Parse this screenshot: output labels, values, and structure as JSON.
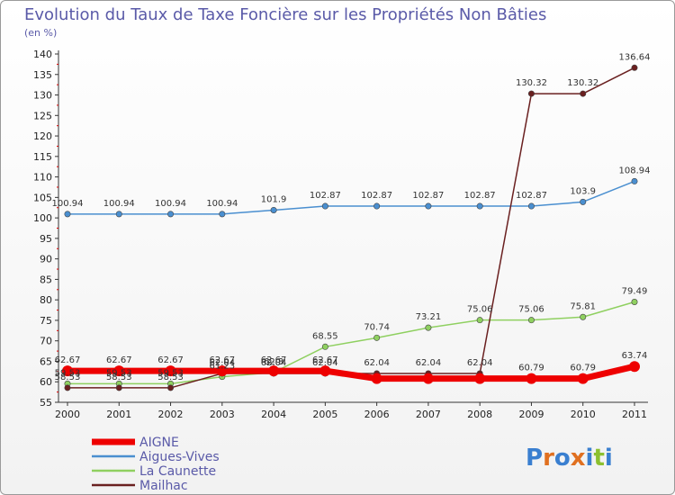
{
  "chart_data": {
    "type": "line",
    "title": "Evolution du Taux de Taxe Foncière sur les Propriétés Non Bâties",
    "subtitle": "(en %)",
    "categories": [
      "2000",
      "2001",
      "2002",
      "2003",
      "2004",
      "2005",
      "2006",
      "2007",
      "2008",
      "2009",
      "2010",
      "2011"
    ],
    "ylim": [
      55,
      140
    ],
    "yticks": [
      55,
      60,
      65,
      70,
      75,
      80,
      85,
      90,
      95,
      100,
      105,
      110,
      115,
      120,
      125,
      130,
      135,
      140
    ],
    "series": [
      {
        "name": "AIGNE",
        "color": "#ee0000",
        "values": [
          62.67,
          62.67,
          62.67,
          62.67,
          62.67,
          62.67,
          60.79,
          60.79,
          60.79,
          60.79,
          60.79,
          63.74
        ],
        "labels": [
          "62.67",
          "62.67",
          "62.67",
          "62.67",
          "62.67",
          "62.67",
          "",
          "",
          "",
          "60.79",
          "60.79",
          "63.74"
        ]
      },
      {
        "name": "Aigues-Vives",
        "color": "#4a8fd0",
        "values": [
          100.94,
          100.94,
          100.94,
          100.94,
          101.9,
          102.87,
          102.87,
          102.87,
          102.87,
          102.87,
          103.9,
          108.94
        ],
        "labels": [
          "100.94",
          "100.94",
          "100.94",
          "100.94",
          "101.9",
          "102.87",
          "102.87",
          "102.87",
          "102.87",
          "102.87",
          "103.9",
          "108.94"
        ]
      },
      {
        "name": "La Caunette",
        "color": "#8fd060",
        "values": [
          59.53,
          59.53,
          59.53,
          61.23,
          62.3,
          68.55,
          70.74,
          73.21,
          75.06,
          75.06,
          75.81,
          79.49
        ],
        "labels": [
          "59.53",
          "59.53",
          "59.53",
          "61.23",
          "62.3",
          "68.55",
          "70.74",
          "73.21",
          "75.06",
          "75.06",
          "75.81",
          "79.49"
        ]
      },
      {
        "name": "Mailhac",
        "color": "#6a2020",
        "values": [
          58.53,
          58.53,
          58.53,
          62.04,
          62.04,
          62.04,
          62.04,
          62.04,
          62.04,
          130.32,
          130.32,
          136.64
        ],
        "labels": [
          "58.53",
          "58.53",
          "58.53",
          "62.04",
          "62.04",
          "62.04",
          "62.04",
          "62.04",
          "62.04",
          "130.32",
          "130.32",
          "136.64"
        ]
      }
    ]
  },
  "logo": {
    "text": "Proxiti"
  }
}
